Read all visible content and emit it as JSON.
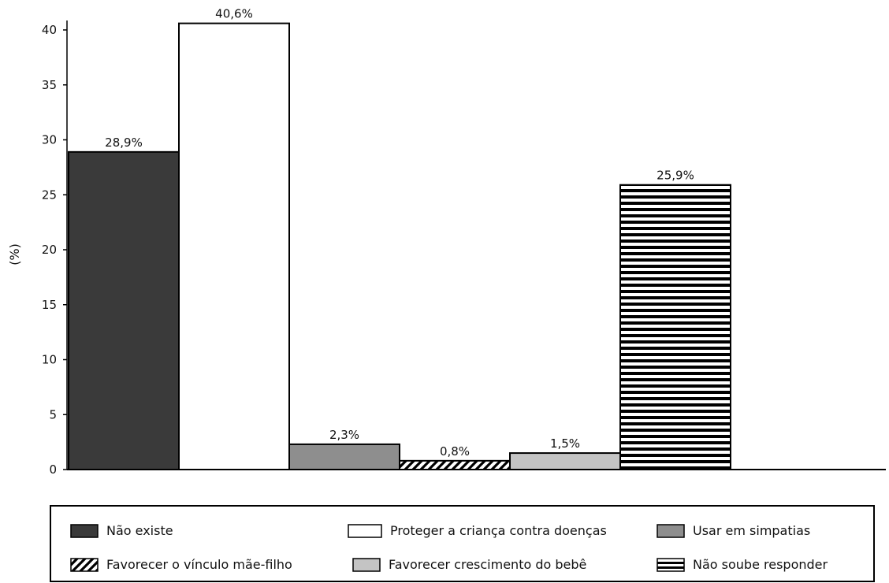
{
  "chart_data": {
    "type": "bar",
    "ylabel": "(%)",
    "ylim": [
      0,
      40
    ],
    "yticks": [
      "0",
      "5",
      "10",
      "15",
      "20",
      "25",
      "30",
      "35",
      "40"
    ],
    "categories": [
      "Não  existe",
      "Proteger a criança contra doenças",
      "Usar em simpatias",
      "Favorecer o vínculo mãe-filho",
      "Favorecer crescimento do bebê",
      "Não soube responder"
    ],
    "values": [
      28.9,
      40.6,
      2.3,
      0.8,
      1.5,
      25.9
    ],
    "data_labels": [
      "28,9%",
      "40,6%",
      "2,3%",
      "0,8%",
      "1,5%",
      "25,9%"
    ],
    "bar_fills": [
      {
        "fill": "#3a3a3a",
        "pattern": "solid"
      },
      {
        "fill": "#ffffff",
        "pattern": "solid"
      },
      {
        "fill": "#8e8e8e",
        "pattern": "solid"
      },
      {
        "fill": "#ffffff",
        "pattern": "diagonal-black"
      },
      {
        "fill": "#c4c4c4",
        "pattern": "solid"
      },
      {
        "fill": "#ffffff",
        "pattern": "horizontal-stripes"
      }
    ],
    "grid": false,
    "legend_position": "bottom"
  },
  "legend": {
    "items": [
      {
        "label": "Não  existe"
      },
      {
        "label": "Proteger a criança contra doenças"
      },
      {
        "label": "Usar em simpatias"
      },
      {
        "label": "Favorecer o vínculo mãe-filho"
      },
      {
        "label": "Favorecer crescimento do bebê"
      },
      {
        "label": "Não soube responder"
      }
    ]
  }
}
